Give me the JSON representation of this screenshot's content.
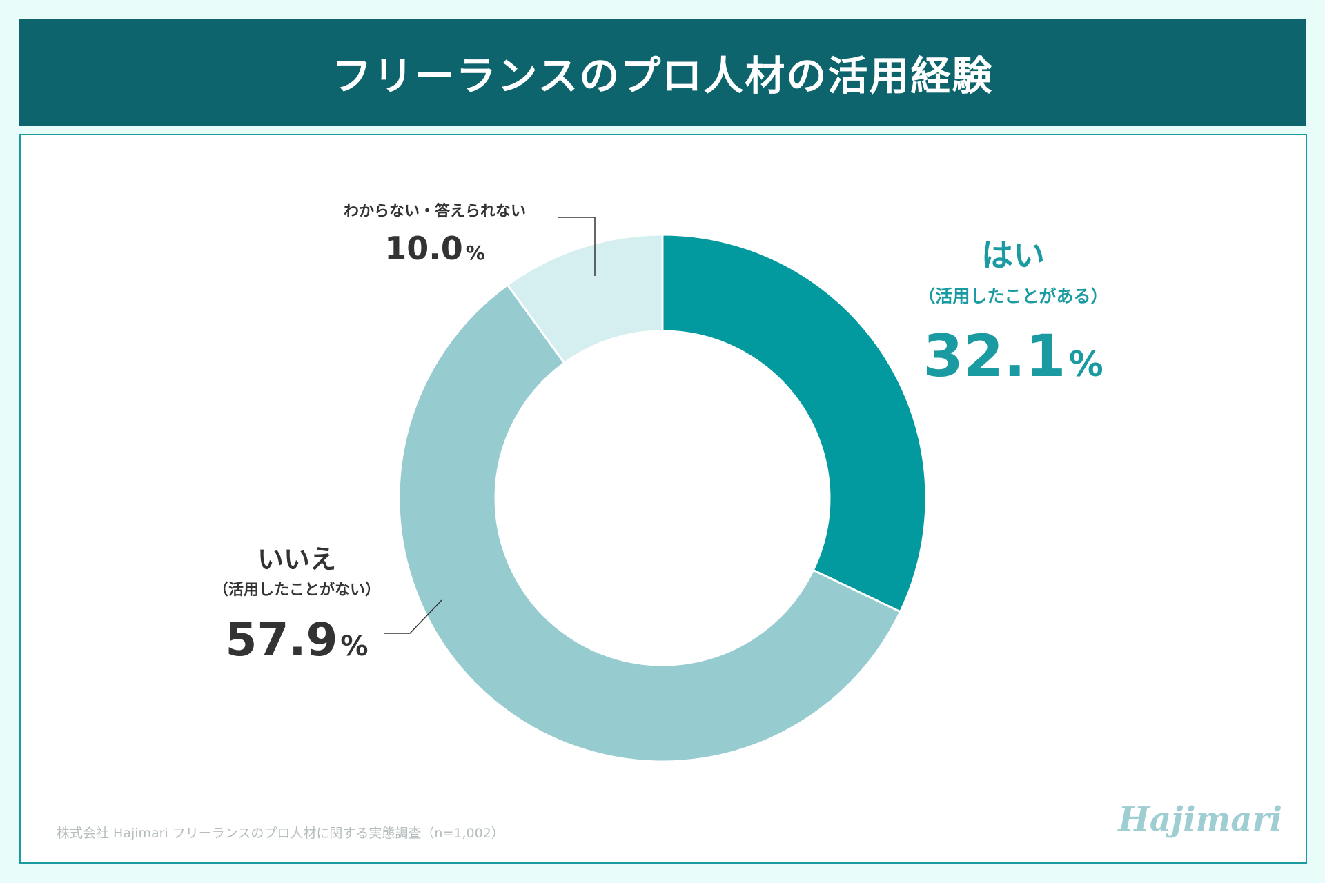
{
  "header": {
    "title": "フリーランスのプロ人材の活用経験"
  },
  "chart_data": {
    "type": "pie",
    "variant": "donut",
    "title": "フリーランスのプロ人材の活用経験",
    "unit": "%",
    "slices": [
      {
        "label": "はい",
        "sublabel": "（活用したことがある）",
        "value": 32.1,
        "value_text": "32.1",
        "color": "#02999f",
        "label_color": "#1a9aa1"
      },
      {
        "label": "いいえ",
        "sublabel": "（活用したことがない）",
        "value": 57.9,
        "value_text": "57.9",
        "color": "#96cbd0",
        "label_color": "#333333"
      },
      {
        "label": "わからない・答えられない",
        "sublabel": "",
        "value": 10.0,
        "value_text": "10.0",
        "color": "#d5eef0",
        "label_color": "#333333"
      }
    ]
  },
  "footer": {
    "source": "株式会社 Hajimari フリーランスのプロ人材に関する実態調査（n=1,002）",
    "brand": "Hajimari"
  }
}
